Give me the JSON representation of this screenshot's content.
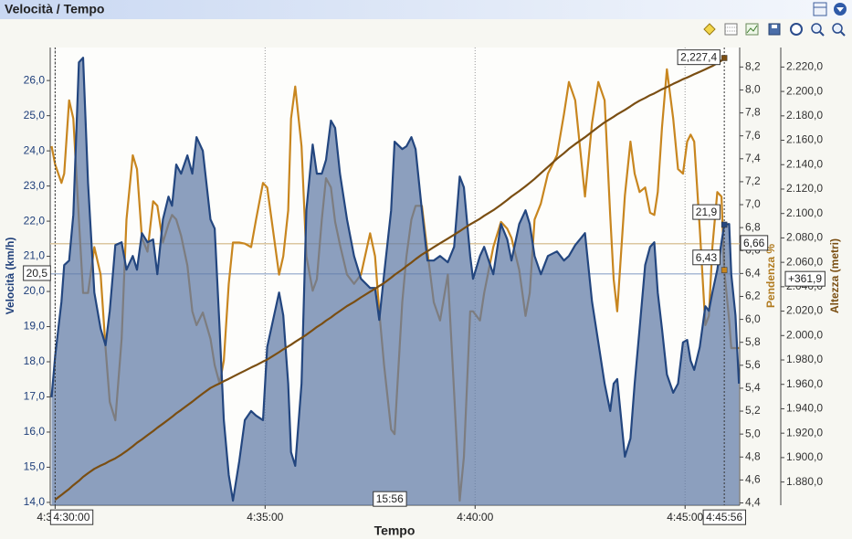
{
  "chart_data": {
    "type": "line",
    "title": "Velocità / Tempo",
    "xlabel": "Tempo",
    "ylabel": "Velocità (km/h)",
    "y2label": "Pendenza %",
    "y3label": "Altezza (metri)",
    "grid": true,
    "x": [
      "4:29:55",
      "4:30:00",
      "4:30:09",
      "4:30:13",
      "4:30:20",
      "4:30:26",
      "4:30:34",
      "4:30:40",
      "4:30:47",
      "4:30:56",
      "4:31:05",
      "4:31:12",
      "4:31:18",
      "4:31:26",
      "4:31:35",
      "4:31:42",
      "4:31:51",
      "4:31:57",
      "4:32:04",
      "4:32:12",
      "4:32:20",
      "4:32:26",
      "4:32:34",
      "4:32:42",
      "4:32:47",
      "4:32:53",
      "4:33:00",
      "4:33:09",
      "4:33:16",
      "4:33:22",
      "4:33:31",
      "4:33:42",
      "4:33:48",
      "4:33:55",
      "4:34:01",
      "4:34:08",
      "4:34:14",
      "4:34:23",
      "4:34:31",
      "4:34:40",
      "4:34:47",
      "4:34:57",
      "4:35:03",
      "4:35:20",
      "4:35:26",
      "4:35:33",
      "4:35:37",
      "4:35:43",
      "4:35:52",
      "4:35:59",
      "4:36:08",
      "4:36:14",
      "4:36:21",
      "4:36:27",
      "4:36:34",
      "4:36:40",
      "4:36:47",
      "4:36:57",
      "4:37:07",
      "4:37:17",
      "4:37:30",
      "4:37:37",
      "4:37:43",
      "4:37:50",
      "4:38:00",
      "4:38:05",
      "4:38:16",
      "4:38:22",
      "4:38:29",
      "4:38:35",
      "4:38:44",
      "4:38:52",
      "4:39:01",
      "4:39:10",
      "4:39:21",
      "4:39:30",
      "4:39:38",
      "4:39:44",
      "4:39:53",
      "4:39:57",
      "4:40:07",
      "4:40:13",
      "4:40:26",
      "4:40:37",
      "4:40:46",
      "4:40:52",
      "4:41:03",
      "4:41:12",
      "4:41:18",
      "4:41:25",
      "4:41:34",
      "4:41:44",
      "4:41:57",
      "4:42:07",
      "4:42:14",
      "4:42:23",
      "4:42:37",
      "4:42:47",
      "4:42:56",
      "4:43:05",
      "4:43:13",
      "4:43:18",
      "4:43:23",
      "4:43:34",
      "4:43:42",
      "4:43:48",
      "4:43:55",
      "4:44:03",
      "4:44:10",
      "4:44:16",
      "4:44:21",
      "4:44:27",
      "4:44:34",
      "4:44:43",
      "4:44:50",
      "4:44:57",
      "4:45:03",
      "4:45:08",
      "4:45:13",
      "4:45:21",
      "4:45:29",
      "4:45:34",
      "4:45:39",
      "4:45:46",
      "4:45:52",
      "4:45:56",
      "4:46:03",
      "4:46:06",
      "4:46:12",
      "4:46:17"
    ],
    "xlim": [
      "4:29:53",
      "4:46:18"
    ],
    "xticks": [
      "4:30:00",
      "4:35:00",
      "4:40:00",
      "4:45:00"
    ],
    "ylim": [
      13.92,
      26.94
    ],
    "yticks": [
      {
        "value": 14,
        "label": "14,0"
      },
      {
        "value": 15,
        "label": "15,0"
      },
      {
        "value": 16,
        "label": "16,0"
      },
      {
        "value": 17,
        "label": "17,0"
      },
      {
        "value": 18,
        "label": "18,0"
      },
      {
        "value": 19,
        "label": "19,0"
      },
      {
        "value": 20,
        "label": "20,0"
      },
      {
        "value": 21,
        "label": "21,0"
      },
      {
        "value": 22,
        "label": "22,0"
      },
      {
        "value": 23,
        "label": "23,0"
      },
      {
        "value": 24,
        "label": "24,0"
      },
      {
        "value": 25,
        "label": "25,0"
      },
      {
        "value": 26,
        "label": "26,0"
      }
    ],
    "y2lim": [
      4.38,
      8.37
    ],
    "y2ticks": [
      {
        "value": 4.4,
        "label": "4,4"
      },
      {
        "value": 4.6,
        "label": "4,6"
      },
      {
        "value": 4.8,
        "label": "4,8"
      },
      {
        "value": 5.0,
        "label": "5,0"
      },
      {
        "value": 5.2,
        "label": "5,2"
      },
      {
        "value": 5.4,
        "label": "5,4"
      },
      {
        "value": 5.6,
        "label": "5,6"
      },
      {
        "value": 5.8,
        "label": "5,8"
      },
      {
        "value": 6.0,
        "label": "6,0"
      },
      {
        "value": 6.2,
        "label": "6,2"
      },
      {
        "value": 6.4,
        "label": "6,4"
      },
      {
        "value": 6.6,
        "label": "6,6"
      },
      {
        "value": 6.8,
        "label": "6,8"
      },
      {
        "value": 7.0,
        "label": "7,0"
      },
      {
        "value": 7.2,
        "label": "7,2"
      },
      {
        "value": 7.4,
        "label": "7,4"
      },
      {
        "value": 7.6,
        "label": "7,6"
      },
      {
        "value": 7.8,
        "label": "7,8"
      },
      {
        "value": 8.0,
        "label": "8,0"
      },
      {
        "value": 8.2,
        "label": "8,2"
      }
    ],
    "y3lim": [
      1861,
      2236
    ],
    "y3ticks": [
      {
        "value": 1880,
        "label": "1.880,0"
      },
      {
        "value": 1900,
        "label": "1.900,0"
      },
      {
        "value": 1920,
        "label": "1.920,0"
      },
      {
        "value": 1940,
        "label": "1.940,0"
      },
      {
        "value": 1960,
        "label": "1.960,0"
      },
      {
        "value": 1980,
        "label": "1.980,0"
      },
      {
        "value": 2000,
        "label": "2.000,0"
      },
      {
        "value": 2020,
        "label": "2.020,0"
      },
      {
        "value": 2040,
        "label": "2.040,0"
      },
      {
        "value": 2060,
        "label": "2.060,0"
      },
      {
        "value": 2080,
        "label": "2.080,0"
      },
      {
        "value": 2100,
        "label": "2.100,0"
      },
      {
        "value": 2120,
        "label": "2.120,0"
      },
      {
        "value": 2140,
        "label": "2.140,0"
      },
      {
        "value": 2160,
        "label": "2.160,0"
      },
      {
        "value": 2180,
        "label": "2.180,0"
      },
      {
        "value": 2200,
        "label": "2.200,0"
      },
      {
        "value": 2220,
        "label": "2.220,0"
      }
    ],
    "series": [
      {
        "axis": "y2",
        "color": "#c8861f",
        "values": [
          7.51,
          7.35,
          7.19,
          7.27,
          7.91,
          7.75,
          6.87,
          6.23,
          6.23,
          6.63,
          6.39,
          5.75,
          5.28,
          5.12,
          5.83,
          6.87,
          7.43,
          7.31,
          6.71,
          6.59,
          7.03,
          6.99,
          6.67,
          6.83,
          6.91,
          6.87,
          6.73,
          6.47,
          6.07,
          5.95,
          6.06,
          5.83,
          5.6,
          5.44,
          5.64,
          6.31,
          6.67,
          6.67,
          6.66,
          6.63,
          6.87,
          7.19,
          7.15,
          6.39,
          6.55,
          6.95,
          7.75,
          8.03,
          7.51,
          6.55,
          6.25,
          6.35,
          6.87,
          7.23,
          7.15,
          6.85,
          6.65,
          6.39,
          6.31,
          6.39,
          6.75,
          6.55,
          6.07,
          5.6,
          5.04,
          5.0,
          6.15,
          6.55,
          6.87,
          6.99,
          6.99,
          6.59,
          6.15,
          5.99,
          6.39,
          5.36,
          4.42,
          4.8,
          6.07,
          6.07,
          5.99,
          6.23,
          6.63,
          6.85,
          6.79,
          6.71,
          6.43,
          6.03,
          6.23,
          6.87,
          7.01,
          7.27,
          7.43,
          7.79,
          8.07,
          7.91,
          7.07,
          7.71,
          8.07,
          7.91,
          6.91,
          6.35,
          6.07,
          7.08,
          7.55,
          7.27,
          7.11,
          7.15,
          6.93,
          6.91,
          7.11,
          7.67,
          8.18,
          7.75,
          7.31,
          7.27,
          7.55,
          7.61,
          7.55,
          6.79,
          5.95,
          6.03,
          6.63,
          7.11,
          7.07,
          6.43,
          5.99,
          5.75,
          5.75,
          5.75
        ]
      },
      {
        "axis": "y",
        "style": "area",
        "color": "#23467f",
        "fill": "#5f7aa6",
        "values": [
          16.99,
          18.16,
          19.71,
          20.75,
          20.88,
          22.18,
          26.52,
          26.65,
          23.09,
          19.97,
          18.94,
          18.47,
          19.45,
          21.32,
          21.4,
          20.62,
          21.01,
          20.62,
          21.66,
          21.4,
          21.48,
          20.49,
          22.05,
          22.7,
          22.44,
          23.61,
          23.35,
          23.87,
          23.35,
          24.39,
          24.0,
          22.05,
          21.79,
          18.94,
          16.34,
          14.78,
          14.05,
          15.17,
          16.34,
          16.6,
          16.47,
          16.34,
          18.42,
          19.97,
          19.32,
          17.38,
          15.43,
          15.04,
          17.38,
          22.31,
          24.18,
          23.35,
          23.35,
          23.74,
          24.86,
          24.65,
          23.35,
          22.05,
          21.01,
          20.36,
          20.1,
          20.1,
          19.19,
          20.49,
          22.31,
          24.26,
          24.05,
          24.13,
          24.39,
          24.05,
          22.31,
          20.88,
          20.88,
          21.01,
          20.83,
          21.27,
          23.27,
          22.96,
          21.01,
          20.36,
          21.01,
          21.27,
          20.49,
          21.92,
          21.48,
          20.88,
          21.92,
          22.31,
          21.92,
          21.01,
          20.49,
          21.01,
          21.14,
          20.88,
          21.01,
          21.32,
          21.66,
          19.71,
          18.55,
          17.38,
          16.6,
          17.38,
          17.51,
          15.3,
          15.82,
          17.38,
          18.94,
          20.75,
          21.27,
          21.4,
          19.97,
          18.94,
          17.64,
          17.12,
          17.38,
          18.55,
          18.62,
          18.03,
          17.77,
          18.42,
          19.58,
          19.45,
          19.97,
          20.62,
          21.4,
          21.9,
          21.92,
          20.49,
          19.32,
          17.38
        ]
      },
      {
        "axis": "y3",
        "color": "#7a4e12",
        "values": [
          null,
          1865.5,
          1869.4,
          1871.2,
          1874.3,
          1877.4,
          1881.0,
          1884.2,
          1887.2,
          1890.8,
          1893.5,
          1895.3,
          1897.2,
          1899.4,
          1902.6,
          1905.4,
          1909.3,
          1912.1,
          1914.9,
          1918.3,
          1921.7,
          1924.5,
          1927.8,
          1931.2,
          1933.4,
          1936.2,
          1939.0,
          1942.9,
          1945.8,
          1948.6,
          1952.5,
          1957.0,
          1958.8,
          1960.7,
          1962.6,
          1964.5,
          1966.3,
          1968.9,
          1971.2,
          1973.8,
          1975.7,
          1978.7,
          1980.3,
          1986.4,
          1988.7,
          1991.1,
          1992.5,
          1994.8,
          1998.1,
          2000.7,
          2004.4,
          2007.0,
          2009.6,
          2012.2,
          2014.8,
          2017.4,
          2020.1,
          2024.2,
          2027.5,
          2031.3,
          2035.9,
          2038.3,
          2040.6,
          2043.0,
          2047.4,
          2049.7,
          2054.1,
          2056.9,
          2059.8,
          2062.6,
          2066.3,
          2069.1,
          2072.4,
          2075.6,
          2079.4,
          2082.6,
          2085.5,
          2087.8,
          2091.1,
          2092.4,
          2095.7,
          2098.1,
          2102.7,
          2107.2,
          2111.1,
          2113.9,
          2118.4,
          2122.3,
          2125.1,
          2128.4,
          2133.0,
          2138.2,
          2144.8,
          2149.4,
          2153.0,
          2156.9,
          2162.5,
          2167.0,
          2170.9,
          2174.7,
          2177.5,
          2179.3,
          2181.2,
          2184.9,
          2187.8,
          2190.1,
          2192.4,
          2194.7,
          2196.9,
          2198.4,
          2199.9,
          2201.8,
          2203.6,
          2206.2,
          2208.0,
          2210.0,
          2211.4,
          2212.7,
          2214.1,
          2216.1,
          2218.1,
          2219.5,
          2220.8,
          2223.1,
          2225.3,
          2227.4,
          null,
          null,
          null,
          null
        ]
      }
    ],
    "reference_lines": [
      {
        "value": 20.5,
        "label": "20,5",
        "axis": "y",
        "color": "#a9bad6"
      },
      {
        "value": 6.66,
        "label": "6,66",
        "axis": "y2",
        "color": "#dcc79f"
      }
    ],
    "cursors": [
      "4:30:00",
      "4:45:56"
    ],
    "cursor_values": [
      {
        "value": 21.9,
        "label": "21,9",
        "axis": "y"
      },
      {
        "value": 6.43,
        "label": "6,43",
        "axis": "y2"
      },
      {
        "value": 2227.4,
        "label": "2,227,4",
        "axis": "y3"
      }
    ],
    "gain": {
      "value": 361.9,
      "label": "+361,9"
    },
    "duration": "15:56"
  }
}
